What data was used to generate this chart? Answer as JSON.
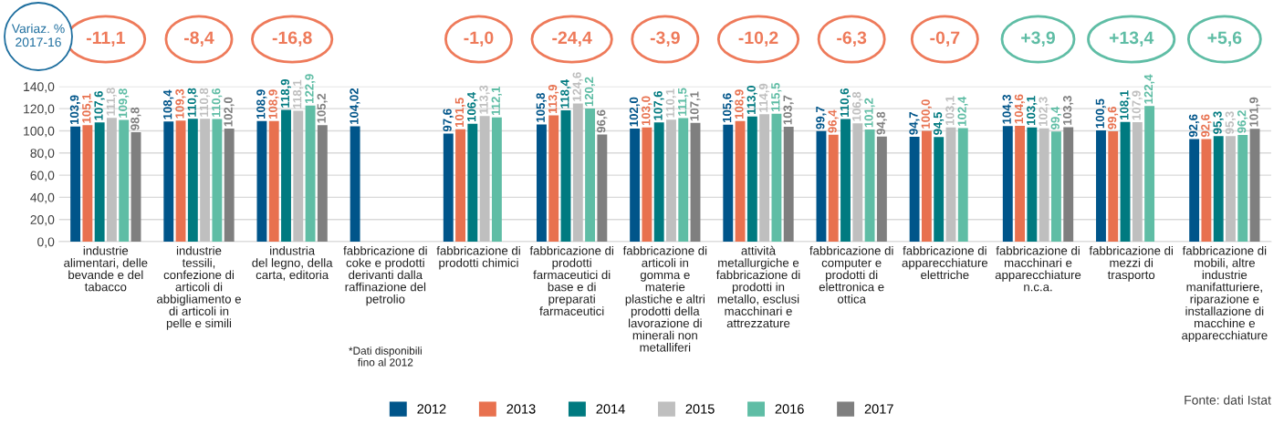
{
  "chart_data": {
    "type": "bar",
    "categories": [
      "industrie\nalimentari, delle\nbevande e del\ntabacco",
      "industrie\ntessili,\nconfezione di\narticoli di\nabbigliamento e\ndi articoli in\npelle e simili",
      "industria\ndel legno, della\ncarta, editoria",
      "fabbricazione di\ncoke e prodotti\nderivanti dalla\nraffinazione del\npetrolio",
      "fabbricazione di\nprodotti chimici",
      "fabbricazione di\nprodotti\nfarmaceutici di\nbase e di\npreparati\nfarmaceutici",
      "fabbricazione di\narticoli in\ngomma e\nmaterie\nplastiche e altri\nprodotti della\nlavorazione di\nminerali non\nmetalliferi",
      "attività\nmetallurgiche e\nfabbricazione di\nprodotti in\nmetallo, esclusi\nmacchinari e\nattrezzature",
      "fabbricazione di\ncomputer e\nprodotti di\nelettronica e\nottica",
      "fabbricazione di\napparecchiature\nelettriche",
      "fabbricazione di\nmacchinari e\napparecchiature\nn.c.a.",
      "fabbricazione di\nmezzi di\ntrasporto",
      "fabbricazione di\nmobili, altre\nindustrie\nmanifatturiere,\nriparazione e\ninstallazione di\nmacchine e\napparecchiature"
    ],
    "series": [
      {
        "name": "2012",
        "color": "#00558a",
        "values": [
          103.9,
          108.4,
          108.9,
          104.02,
          97.6,
          105.8,
          102.0,
          105.6,
          99.7,
          94.7,
          104.3,
          100.5,
          92.6
        ],
        "value_labels": [
          "103,9",
          "108,4",
          "108,9",
          "104,02",
          "97,6",
          "105,8",
          "102,0",
          "105,6",
          "99,7",
          "94,7",
          "104,3",
          "100,5",
          "92,6"
        ]
      },
      {
        "name": "2013",
        "color": "#e8714f",
        "values": [
          105.1,
          109.3,
          108.9,
          null,
          101.5,
          113.9,
          103.0,
          108.9,
          96.4,
          100.0,
          104.6,
          99.6,
          92.6
        ],
        "value_labels": [
          "105,1",
          "109,3",
          "108,9",
          null,
          "101,5",
          "113,9",
          "103,0",
          "108,9",
          "96,4",
          "100,0",
          "104,6",
          "99,6",
          "92,6"
        ]
      },
      {
        "name": "2014",
        "color": "#007a80",
        "values": [
          107.6,
          110.8,
          118.9,
          null,
          106.4,
          118.4,
          107.6,
          113.0,
          110.6,
          94.5,
          103.1,
          108.1,
          95.3
        ],
        "value_labels": [
          "107,6",
          "110,8",
          "118,9",
          null,
          "106,4",
          "118,4",
          "107,6",
          "113,0",
          "110,6",
          "94,5",
          "103,1",
          "108,1",
          "95,3"
        ]
      },
      {
        "name": "2015",
        "color": "#bfbfbf",
        "values": [
          111.8,
          110.8,
          118.1,
          null,
          113.3,
          124.6,
          110.1,
          114.9,
          106.8,
          103.1,
          102.3,
          107.9,
          95.3
        ],
        "value_labels": [
          "111,8",
          "110,8",
          "118,1",
          null,
          "113,3",
          "124,6",
          "110,1",
          "114,9",
          "106,8",
          "103,1",
          "102,3",
          "107,9",
          "95,3"
        ]
      },
      {
        "name": "2016",
        "color": "#5fbda5",
        "values": [
          109.8,
          110.6,
          122.9,
          null,
          112.1,
          120.2,
          111.5,
          115.5,
          101.2,
          102.4,
          99.4,
          122.4,
          96.2
        ],
        "value_labels": [
          "109,8",
          "110,6",
          "122,9",
          null,
          "112,1",
          "120,2",
          "111,5",
          "115,5",
          "101,2",
          "102,4",
          "99,4",
          "122,4",
          "96,2"
        ]
      },
      {
        "name": "2017",
        "color": "#7f7f7f",
        "values": [
          98.8,
          102.0,
          105.2,
          null,
          null,
          96.6,
          107.1,
          103.7,
          94.8,
          null,
          103.3,
          null,
          101.9
        ],
        "value_labels": [
          "98,8",
          "102,0",
          "105,2",
          null,
          null,
          "96,6",
          "107,1",
          "103,7",
          "94,8",
          null,
          "103,3",
          null,
          "101,9"
        ]
      }
    ],
    "ylim": [
      0,
      140
    ],
    "yticks": [
      {
        "value": 0,
        "label": "0,0"
      },
      {
        "value": 20,
        "label": "20,0"
      },
      {
        "value": 40,
        "label": "40,0"
      },
      {
        "value": 60,
        "label": "60,0"
      },
      {
        "value": 80,
        "label": "80,0"
      },
      {
        "value": 100,
        "label": "100,0"
      },
      {
        "value": 120,
        "label": "120,0"
      },
      {
        "value": 140,
        "label": "140,0"
      }
    ],
    "grid": "y",
    "legend": "bottom",
    "annotations": [
      "Variaz. %\n2017-16",
      "-11,1",
      "-8,4",
      "-16,8",
      "-1,0",
      "-24,4",
      "-3,9",
      "-10,2",
      "-6,3",
      "-0,7",
      "+3,9",
      "+13,4",
      "+5,6",
      "*Dati disponibili\nfino al 2012",
      "Fonte: dati Istat"
    ]
  }
}
